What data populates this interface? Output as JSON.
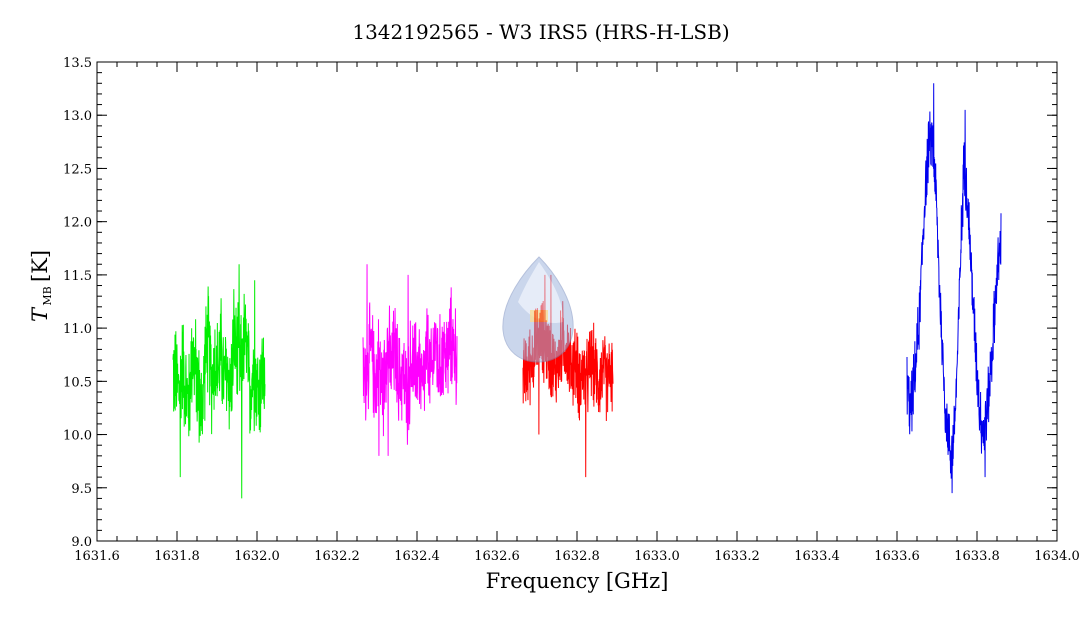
{
  "chart_data": {
    "type": "line",
    "title": "1342192565 - W3 IRS5 (HRS-H-LSB)",
    "xlabel": "Frequency [GHz]",
    "ylabel_main": "T",
    "ylabel_sub": "MB",
    "ylabel_unit": "[K]",
    "xlim": [
      1631.6,
      1634.0
    ],
    "ylim": [
      9.0,
      13.5
    ],
    "xticks": [
      1631.6,
      1631.8,
      1632.0,
      1632.2,
      1632.4,
      1632.6,
      1632.8,
      1633.0,
      1633.2,
      1633.4,
      1633.6,
      1633.8,
      1634.0
    ],
    "xtick_labels": [
      "1631.6",
      "1631.8",
      "1632.0",
      "1632.2",
      "1632.4",
      "1632.6",
      "1632.8",
      "1633.0",
      "1633.2",
      "1633.4",
      "1633.6",
      "1633.8",
      "1634.0"
    ],
    "yticks": [
      9.0,
      9.5,
      10.0,
      10.5,
      11.0,
      11.5,
      12.0,
      12.5,
      13.0,
      13.5
    ],
    "ytick_labels": [
      "9.0",
      "9.5",
      "10.0",
      "10.5",
      "11.0",
      "11.5",
      "12.0",
      "12.5",
      "13.0",
      "13.5"
    ],
    "grid": false,
    "series": [
      {
        "color": "#00ee00",
        "x_range": [
          1631.79,
          1632.02
        ],
        "points": [
          [
            1631.79,
            10.6
          ],
          [
            1631.798,
            10.5
          ],
          [
            1631.806,
            10.4
          ],
          [
            1631.814,
            10.7
          ],
          [
            1631.822,
            10.4
          ],
          [
            1631.83,
            10.3
          ],
          [
            1631.838,
            10.8
          ],
          [
            1631.846,
            10.6
          ],
          [
            1631.854,
            10.4
          ],
          [
            1631.862,
            10.2
          ],
          [
            1631.87,
            10.7
          ],
          [
            1631.878,
            10.9
          ],
          [
            1631.886,
            10.5
          ],
          [
            1631.894,
            10.7
          ],
          [
            1631.902,
            10.6
          ],
          [
            1631.91,
            10.8
          ],
          [
            1631.918,
            10.5
          ],
          [
            1631.926,
            10.6
          ],
          [
            1631.934,
            10.4
          ],
          [
            1631.942,
            10.9
          ],
          [
            1631.95,
            10.7
          ],
          [
            1631.958,
            10.6
          ],
          [
            1631.966,
            10.9
          ],
          [
            1631.974,
            10.8
          ],
          [
            1631.982,
            10.4
          ],
          [
            1631.99,
            10.6
          ],
          [
            1631.998,
            10.5
          ],
          [
            1632.006,
            10.4
          ],
          [
            1632.014,
            10.6
          ],
          [
            1632.02,
            10.5
          ]
        ],
        "noise": 0.6,
        "spikes": [
          [
            1631.962,
            9.4
          ],
          [
            1631.955,
            11.6
          ],
          [
            1631.808,
            9.6
          ],
          [
            1631.994,
            11.45
          ]
        ]
      },
      {
        "color": "#ff00ff",
        "x_range": [
          1632.265,
          1632.5
        ],
        "points": [
          [
            1632.265,
            10.5
          ],
          [
            1632.275,
            10.6
          ],
          [
            1632.285,
            10.8
          ],
          [
            1632.295,
            10.5
          ],
          [
            1632.305,
            10.7
          ],
          [
            1632.315,
            10.4
          ],
          [
            1632.325,
            10.9
          ],
          [
            1632.335,
            10.6
          ],
          [
            1632.345,
            10.8
          ],
          [
            1632.355,
            10.5
          ],
          [
            1632.365,
            10.6
          ],
          [
            1632.375,
            10.3
          ],
          [
            1632.385,
            10.7
          ],
          [
            1632.395,
            10.6
          ],
          [
            1632.405,
            10.7
          ],
          [
            1632.415,
            10.4
          ],
          [
            1632.425,
            10.8
          ],
          [
            1632.435,
            10.5
          ],
          [
            1632.445,
            10.9
          ],
          [
            1632.455,
            10.6
          ],
          [
            1632.465,
            10.8
          ],
          [
            1632.475,
            10.7
          ],
          [
            1632.485,
            10.9
          ],
          [
            1632.495,
            10.8
          ],
          [
            1632.5,
            10.7
          ]
        ],
        "noise": 0.55,
        "spikes": [
          [
            1632.275,
            11.6
          ],
          [
            1632.328,
            9.8
          ],
          [
            1632.378,
            11.5
          ],
          [
            1632.305,
            9.8
          ]
        ]
      },
      {
        "color": "#ff0000",
        "x_range": [
          1632.665,
          1632.89
        ],
        "points": [
          [
            1632.665,
            10.5
          ],
          [
            1632.675,
            10.6
          ],
          [
            1632.685,
            10.7
          ],
          [
            1632.695,
            10.8
          ],
          [
            1632.705,
            10.9
          ],
          [
            1632.715,
            10.9
          ],
          [
            1632.725,
            10.8
          ],
          [
            1632.735,
            10.7
          ],
          [
            1632.745,
            10.6
          ],
          [
            1632.755,
            10.7
          ],
          [
            1632.765,
            10.9
          ],
          [
            1632.775,
            10.8
          ],
          [
            1632.785,
            10.6
          ],
          [
            1632.795,
            10.7
          ],
          [
            1632.805,
            10.5
          ],
          [
            1632.815,
            10.6
          ],
          [
            1632.825,
            10.5
          ],
          [
            1632.835,
            10.7
          ],
          [
            1632.845,
            10.6
          ],
          [
            1632.855,
            10.5
          ],
          [
            1632.865,
            10.6
          ],
          [
            1632.875,
            10.5
          ],
          [
            1632.885,
            10.6
          ],
          [
            1632.89,
            10.5
          ]
        ],
        "noise": 0.45,
        "spikes": [
          [
            1632.822,
            9.6
          ],
          [
            1632.72,
            11.5
          ],
          [
            1632.735,
            11.5
          ],
          [
            1632.705,
            10.0
          ]
        ]
      },
      {
        "color": "#0000ee",
        "x_range": [
          1633.625,
          1633.86
        ],
        "points": [
          [
            1633.625,
            10.5
          ],
          [
            1633.632,
            10.2
          ],
          [
            1633.64,
            10.4
          ],
          [
            1633.648,
            10.7
          ],
          [
            1633.656,
            11.1
          ],
          [
            1633.664,
            11.8
          ],
          [
            1633.672,
            12.4
          ],
          [
            1633.68,
            12.7
          ],
          [
            1633.688,
            12.8
          ],
          [
            1633.696,
            12.4
          ],
          [
            1633.704,
            11.6
          ],
          [
            1633.712,
            10.9
          ],
          [
            1633.72,
            10.3
          ],
          [
            1633.728,
            10.0
          ],
          [
            1633.736,
            9.8
          ],
          [
            1633.744,
            10.1
          ],
          [
            1633.752,
            10.8
          ],
          [
            1633.76,
            11.8
          ],
          [
            1633.768,
            12.6
          ],
          [
            1633.776,
            12.2
          ],
          [
            1633.784,
            11.7
          ],
          [
            1633.792,
            11.1
          ],
          [
            1633.8,
            10.6
          ],
          [
            1633.808,
            10.2
          ],
          [
            1633.816,
            10.0
          ],
          [
            1633.824,
            10.2
          ],
          [
            1633.832,
            10.5
          ],
          [
            1633.84,
            10.9
          ],
          [
            1633.848,
            11.4
          ],
          [
            1633.856,
            11.7
          ],
          [
            1633.86,
            11.8
          ]
        ],
        "noise": 0.35,
        "spikes": [
          [
            1633.692,
            13.3
          ],
          [
            1633.77,
            13.05
          ],
          [
            1633.738,
            9.45
          ],
          [
            1633.82,
            9.6
          ]
        ]
      }
    ]
  }
}
